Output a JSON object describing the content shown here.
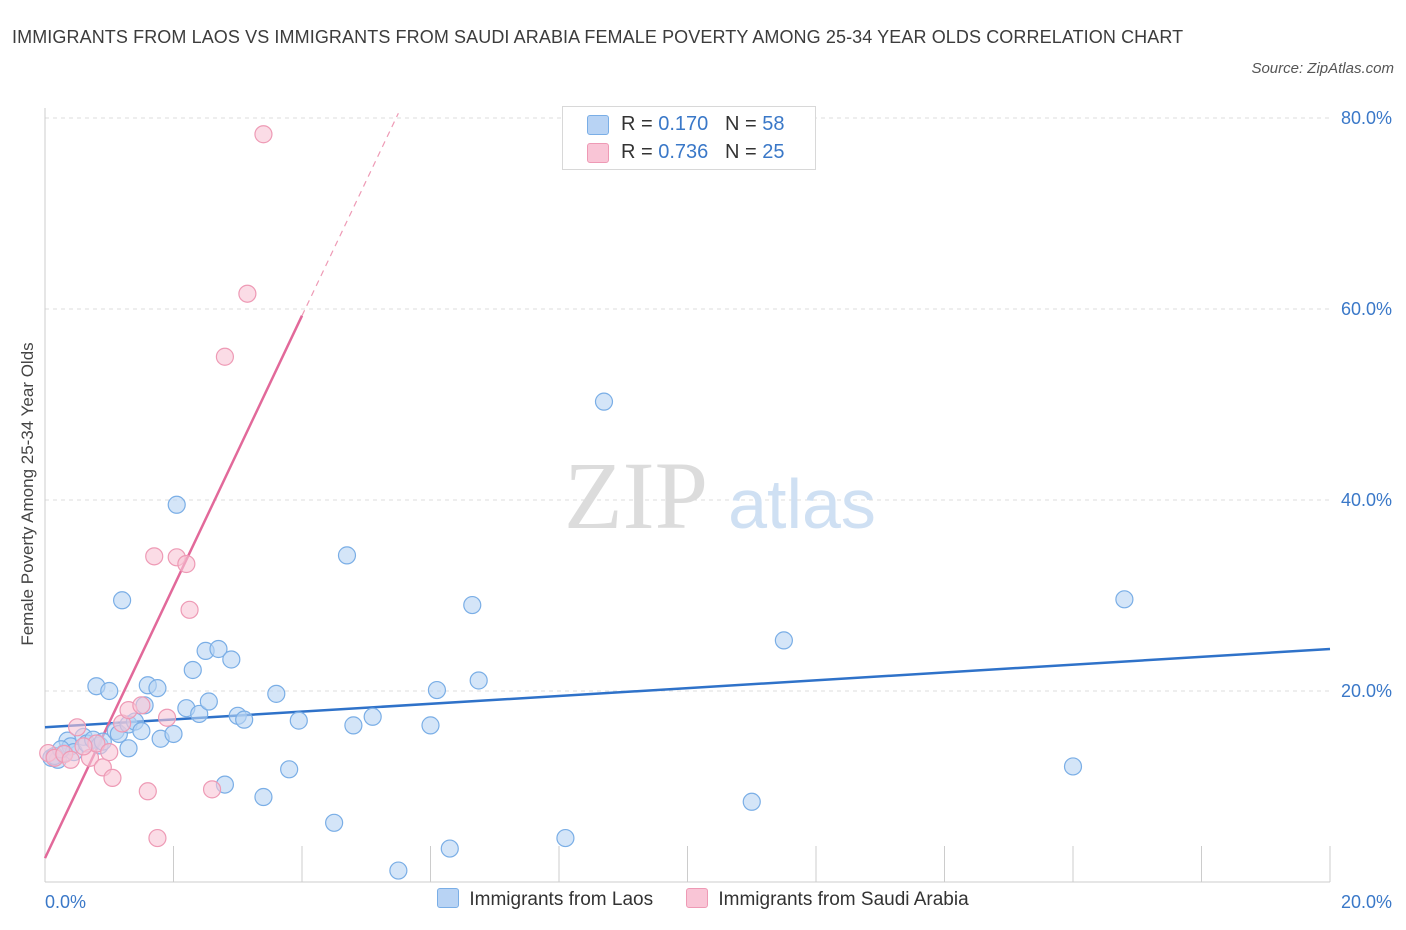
{
  "header": {
    "title": "IMMIGRANTS FROM LAOS VS IMMIGRANTS FROM SAUDI ARABIA FEMALE POVERTY AMONG 25-34 YEAR OLDS CORRELATION CHART",
    "source": "Source: ZipAtlas.com"
  },
  "watermark": {
    "zip": "ZIP",
    "atlas": "atlas"
  },
  "stats": {
    "r_label": "R =",
    "n_label": "N =",
    "laos": {
      "r": "0.170",
      "n": "58"
    },
    "saudi": {
      "r": "0.736",
      "n": "25"
    }
  },
  "colors": {
    "laos_fill": "#b8d3f4",
    "laos_stroke": "#7aaee6",
    "laos_line": "#2f72c9",
    "saudi_fill": "#f9c5d6",
    "saudi_stroke": "#ee9ab5",
    "saudi_line": "#e2699a",
    "tick_text": "#3a78c8",
    "grid": "#dddddd"
  },
  "chart_data": {
    "type": "scatter",
    "title": "IMMIGRANTS FROM LAOS VS IMMIGRANTS FROM SAUDI ARABIA FEMALE POVERTY AMONG 25-34 YEAR OLDS CORRELATION CHART",
    "xlabel": "",
    "ylabel": "Female Poverty Among 25-34 Year Olds",
    "xlim": [
      0,
      20
    ],
    "ylim": [
      0,
      80
    ],
    "x_ticks": [
      "0.0%",
      "20.0%"
    ],
    "y_ticks": [
      {
        "value": 20,
        "label": "20.0%"
      },
      {
        "value": 40,
        "label": "40.0%"
      },
      {
        "value": 60,
        "label": "60.0%"
      },
      {
        "value": 80,
        "label": "80.0%"
      }
    ],
    "grid": true,
    "legend_position": "bottom-center",
    "series": [
      {
        "name": "Immigrants from Laos",
        "points": [
          [
            0.1,
            13.0
          ],
          [
            0.2,
            12.8
          ],
          [
            0.3,
            13.5
          ],
          [
            0.35,
            14.8
          ],
          [
            0.4,
            14.2
          ],
          [
            0.45,
            13.6
          ],
          [
            0.6,
            15.2
          ],
          [
            0.65,
            14.5
          ],
          [
            0.75,
            14.9
          ],
          [
            0.8,
            20.5
          ],
          [
            0.85,
            14.3
          ],
          [
            0.9,
            14.7
          ],
          [
            1.0,
            20.0
          ],
          [
            1.1,
            15.8
          ],
          [
            1.15,
            15.5
          ],
          [
            1.2,
            29.5
          ],
          [
            1.3,
            16.5
          ],
          [
            1.3,
            14.0
          ],
          [
            1.4,
            16.8
          ],
          [
            1.5,
            15.8
          ],
          [
            1.55,
            18.5
          ],
          [
            1.6,
            20.6
          ],
          [
            1.75,
            20.3
          ],
          [
            1.8,
            15.0
          ],
          [
            2.0,
            15.5
          ],
          [
            2.05,
            39.5
          ],
          [
            2.2,
            18.2
          ],
          [
            2.3,
            22.2
          ],
          [
            2.4,
            17.6
          ],
          [
            2.5,
            24.2
          ],
          [
            2.55,
            18.9
          ],
          [
            2.7,
            24.4
          ],
          [
            2.8,
            10.2
          ],
          [
            2.9,
            23.3
          ],
          [
            3.0,
            17.4
          ],
          [
            3.1,
            17.0
          ],
          [
            3.4,
            8.9
          ],
          [
            3.6,
            19.7
          ],
          [
            3.8,
            11.8
          ],
          [
            3.95,
            16.9
          ],
          [
            4.5,
            6.2
          ],
          [
            4.7,
            34.2
          ],
          [
            4.8,
            16.4
          ],
          [
            5.1,
            17.3
          ],
          [
            5.5,
            1.2
          ],
          [
            6.0,
            16.4
          ],
          [
            6.1,
            20.1
          ],
          [
            6.3,
            3.5
          ],
          [
            6.65,
            29.0
          ],
          [
            6.75,
            21.1
          ],
          [
            8.1,
            4.6
          ],
          [
            8.7,
            50.3
          ],
          [
            11.0,
            8.4
          ],
          [
            11.5,
            25.3
          ],
          [
            16.0,
            12.1
          ],
          [
            16.8,
            29.6
          ],
          [
            0.15,
            13.2
          ],
          [
            0.25,
            13.9
          ]
        ]
      },
      {
        "name": "Immigrants from Saudi Arabia",
        "points": [
          [
            0.05,
            13.5
          ],
          [
            0.15,
            13.0
          ],
          [
            0.3,
            13.4
          ],
          [
            0.4,
            12.8
          ],
          [
            0.5,
            16.2
          ],
          [
            0.7,
            13.0
          ],
          [
            0.9,
            12.0
          ],
          [
            1.05,
            10.9
          ],
          [
            1.2,
            16.6
          ],
          [
            1.3,
            18.0
          ],
          [
            1.5,
            18.5
          ],
          [
            1.6,
            9.5
          ],
          [
            1.7,
            34.1
          ],
          [
            1.75,
            4.6
          ],
          [
            1.9,
            17.2
          ],
          [
            2.05,
            34.0
          ],
          [
            2.2,
            33.3
          ],
          [
            2.25,
            28.5
          ],
          [
            2.6,
            9.7
          ],
          [
            2.8,
            55.0
          ],
          [
            3.15,
            61.6
          ],
          [
            3.4,
            78.3
          ],
          [
            0.8,
            14.5
          ],
          [
            1.0,
            13.6
          ],
          [
            0.6,
            14.2
          ]
        ]
      }
    ],
    "trend_lines": [
      {
        "series": "Immigrants from Laos",
        "x": [
          0,
          20
        ],
        "y": [
          16.2,
          24.4
        ]
      },
      {
        "series": "Immigrants from Saudi Arabia",
        "x": [
          0,
          4.0
        ],
        "y": [
          2.5,
          59.3
        ],
        "dashed_extension": {
          "x": [
            4.0,
            5.5
          ],
          "y": [
            59.3,
            80.5
          ]
        }
      }
    ]
  },
  "legend": {
    "laos": "Immigrants from Laos",
    "saudi": "Immigrants from Saudi Arabia"
  }
}
